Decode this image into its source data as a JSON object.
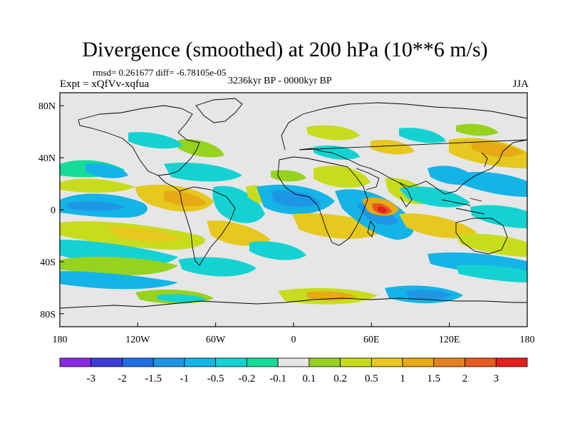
{
  "title": "Divergence (smoothed) at 200 hPa (10**6 m/s)",
  "subtitle_stats": "rmsd= 0.261677 diff= -6.78105e-05",
  "subtitle_expt": "Expt = xQfVv-xqfua",
  "subtitle_period": "3236kyr BP - 0000kyr BP",
  "subtitle_season": "JJA",
  "x_ticks": [
    {
      "lon": -180,
      "label": "180"
    },
    {
      "lon": -120,
      "label": "120W"
    },
    {
      "lon": -60,
      "label": "60W"
    },
    {
      "lon": 0,
      "label": "0"
    },
    {
      "lon": 60,
      "label": "60E"
    },
    {
      "lon": 120,
      "label": "120E"
    },
    {
      "lon": 180,
      "label": "180"
    }
  ],
  "y_ticks": [
    {
      "lat": 80,
      "label": "80N"
    },
    {
      "lat": 40,
      "label": "40N"
    },
    {
      "lat": 0,
      "label": "0"
    },
    {
      "lat": -40,
      "label": "40S"
    },
    {
      "lat": -80,
      "label": "80S"
    }
  ],
  "colorbar": {
    "colors": [
      "#8a2be2",
      "#3c3cdc",
      "#1e6ee6",
      "#1e96e6",
      "#14b4e6",
      "#14d2d2",
      "#14dc96",
      "#e6e6e6",
      "#96d21e",
      "#c8dc1e",
      "#e6c81e",
      "#e6aa14",
      "#e6821e",
      "#e65a1e",
      "#e61e1e"
    ],
    "labels": [
      "-3",
      "-2",
      "-1.5",
      "-1",
      "-0.5",
      "-0.2",
      "-0.1",
      "0.1",
      "0.2",
      "0.5",
      "1",
      "1.5",
      "2",
      "3"
    ]
  }
}
